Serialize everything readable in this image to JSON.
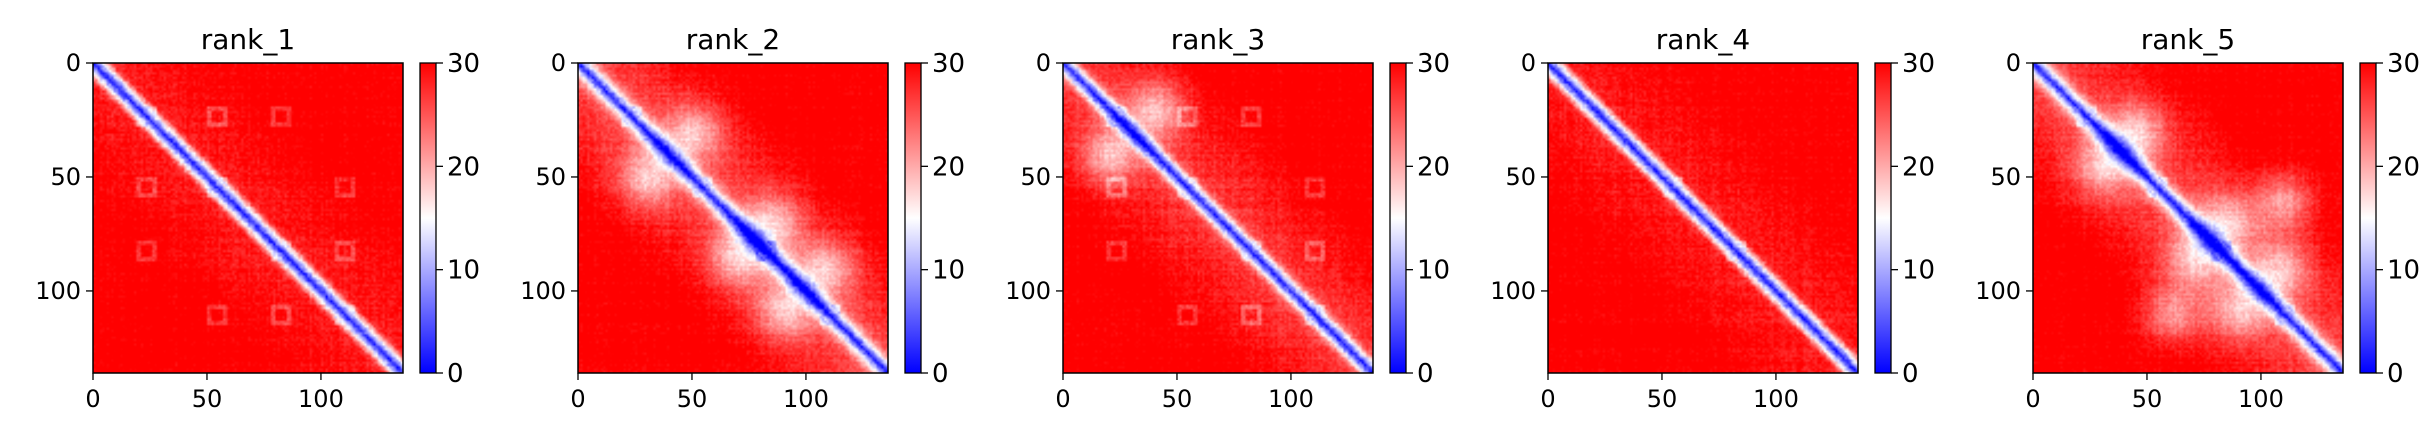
{
  "chart_data": [
    {
      "type": "heatmap",
      "title": "rank_1",
      "size": 136,
      "xticks": [
        0,
        50,
        100
      ],
      "yticks": [
        0,
        50,
        100
      ],
      "colorbar": {
        "min": 0,
        "max": 30,
        "ticks": [
          0,
          10,
          20,
          30
        ],
        "colors": [
          "#0000ff",
          "#ffffff",
          "#ff0000"
        ]
      },
      "texture": {
        "diag_halfwidth": 3.5,
        "off_diag_level": 28,
        "blobs": [],
        "boxes": [
          [
            23,
            23
          ],
          [
            54,
            54
          ],
          [
            82,
            82
          ],
          [
            110,
            110
          ],
          [
            23,
            54
          ],
          [
            54,
            23
          ],
          [
            82,
            110
          ],
          [
            110,
            82
          ],
          [
            23,
            82
          ],
          [
            54,
            110
          ],
          [
            110,
            54
          ],
          [
            82,
            23
          ]
        ]
      }
    },
    {
      "type": "heatmap",
      "title": "rank_2",
      "size": 136,
      "xticks": [
        0,
        50,
        100
      ],
      "yticks": [
        0,
        50,
        100
      ],
      "colorbar": {
        "min": 0,
        "max": 30,
        "ticks": [
          0,
          10,
          20,
          30
        ],
        "colors": [
          "#0000ff",
          "#ffffff",
          "#ff0000"
        ]
      },
      "texture": {
        "diag_halfwidth": 4.5,
        "off_diag_level": 25,
        "blobs": [
          [
            90,
            108
          ],
          [
            108,
            90
          ],
          [
            50,
            30
          ],
          [
            30,
            50
          ],
          [
            70,
            85
          ],
          [
            85,
            70
          ]
        ],
        "boxes": [
          [
            23,
            23
          ],
          [
            54,
            54
          ],
          [
            82,
            82
          ],
          [
            110,
            110
          ]
        ]
      }
    },
    {
      "type": "heatmap",
      "title": "rank_3",
      "size": 136,
      "xticks": [
        0,
        50,
        100
      ],
      "yticks": [
        0,
        50,
        100
      ],
      "colorbar": {
        "min": 0,
        "max": 30,
        "ticks": [
          0,
          10,
          20,
          30
        ],
        "colors": [
          "#0000ff",
          "#ffffff",
          "#ff0000"
        ]
      },
      "texture": {
        "diag_halfwidth": 3.8,
        "off_diag_level": 26,
        "blobs": [
          [
            40,
            20
          ],
          [
            20,
            40
          ]
        ],
        "boxes": [
          [
            23,
            23
          ],
          [
            54,
            54
          ],
          [
            82,
            82
          ],
          [
            110,
            110
          ],
          [
            23,
            54
          ],
          [
            54,
            23
          ],
          [
            82,
            110
          ],
          [
            110,
            82
          ],
          [
            23,
            82
          ],
          [
            54,
            110
          ],
          [
            110,
            54
          ],
          [
            82,
            23
          ]
        ]
      }
    },
    {
      "type": "heatmap",
      "title": "rank_4",
      "size": 136,
      "xticks": [
        0,
        50,
        100
      ],
      "yticks": [
        0,
        50,
        100
      ],
      "colorbar": {
        "min": 0,
        "max": 30,
        "ticks": [
          0,
          10,
          20,
          30
        ],
        "colors": [
          "#0000ff",
          "#ffffff",
          "#ff0000"
        ]
      },
      "texture": {
        "diag_halfwidth": 3.3,
        "off_diag_level": 28,
        "blobs": [],
        "boxes": [
          [
            54,
            54
          ],
          [
            82,
            82
          ]
        ]
      }
    },
    {
      "type": "heatmap",
      "title": "rank_5",
      "size": 136,
      "xticks": [
        0,
        50,
        100
      ],
      "yticks": [
        0,
        50,
        100
      ],
      "colorbar": {
        "min": 0,
        "max": 30,
        "ticks": [
          0,
          10,
          20,
          30
        ],
        "colors": [
          "#0000ff",
          "#ffffff",
          "#ff0000"
        ]
      },
      "texture": {
        "diag_halfwidth": 4.5,
        "off_diag_level": 25,
        "blobs": [
          [
            90,
            108
          ],
          [
            108,
            90
          ],
          [
            70,
            85
          ],
          [
            85,
            70
          ],
          [
            45,
            30
          ],
          [
            30,
            45
          ],
          [
            60,
            110
          ],
          [
            110,
            60
          ]
        ],
        "boxes": [
          [
            23,
            23
          ],
          [
            54,
            54
          ],
          [
            82,
            82
          ],
          [
            110,
            110
          ]
        ]
      }
    }
  ]
}
